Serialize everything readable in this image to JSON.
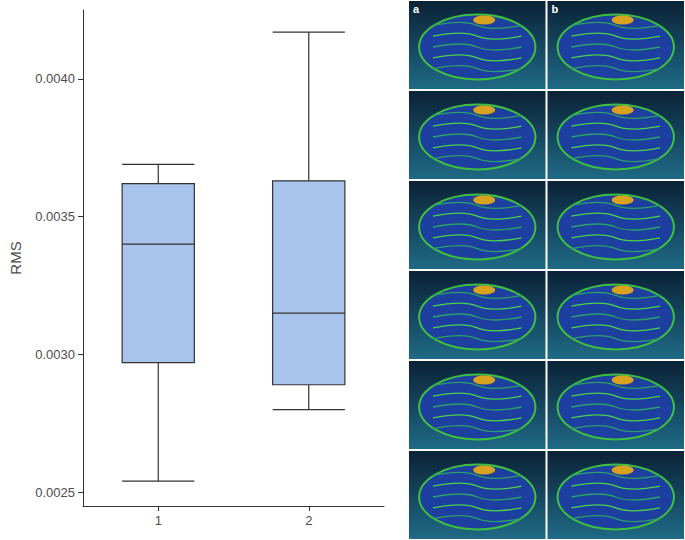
{
  "chart_data": {
    "type": "boxplot",
    "y_label": "RMS",
    "categories": [
      "1",
      "2"
    ],
    "boxes": [
      {
        "min": 0.00254,
        "q1": 0.00297,
        "median": 0.0034,
        "q3": 0.00362,
        "max": 0.00369
      },
      {
        "min": 0.0028,
        "q1": 0.00289,
        "median": 0.00315,
        "q3": 0.00363,
        "max": 0.00417
      }
    ],
    "color": "#a8c4ec",
    "ylim": [
      0.00245,
      0.00425
    ],
    "yticks": [
      0.0025,
      {
        "value": 0.003,
        "label": "0.0030"
      },
      0.0035,
      {
        "value": 0.004,
        "label": "0.0040"
      }
    ],
    "grid": false
  },
  "image_panel": {
    "column_labels": [
      "a",
      "b"
    ],
    "rows": 6
  }
}
